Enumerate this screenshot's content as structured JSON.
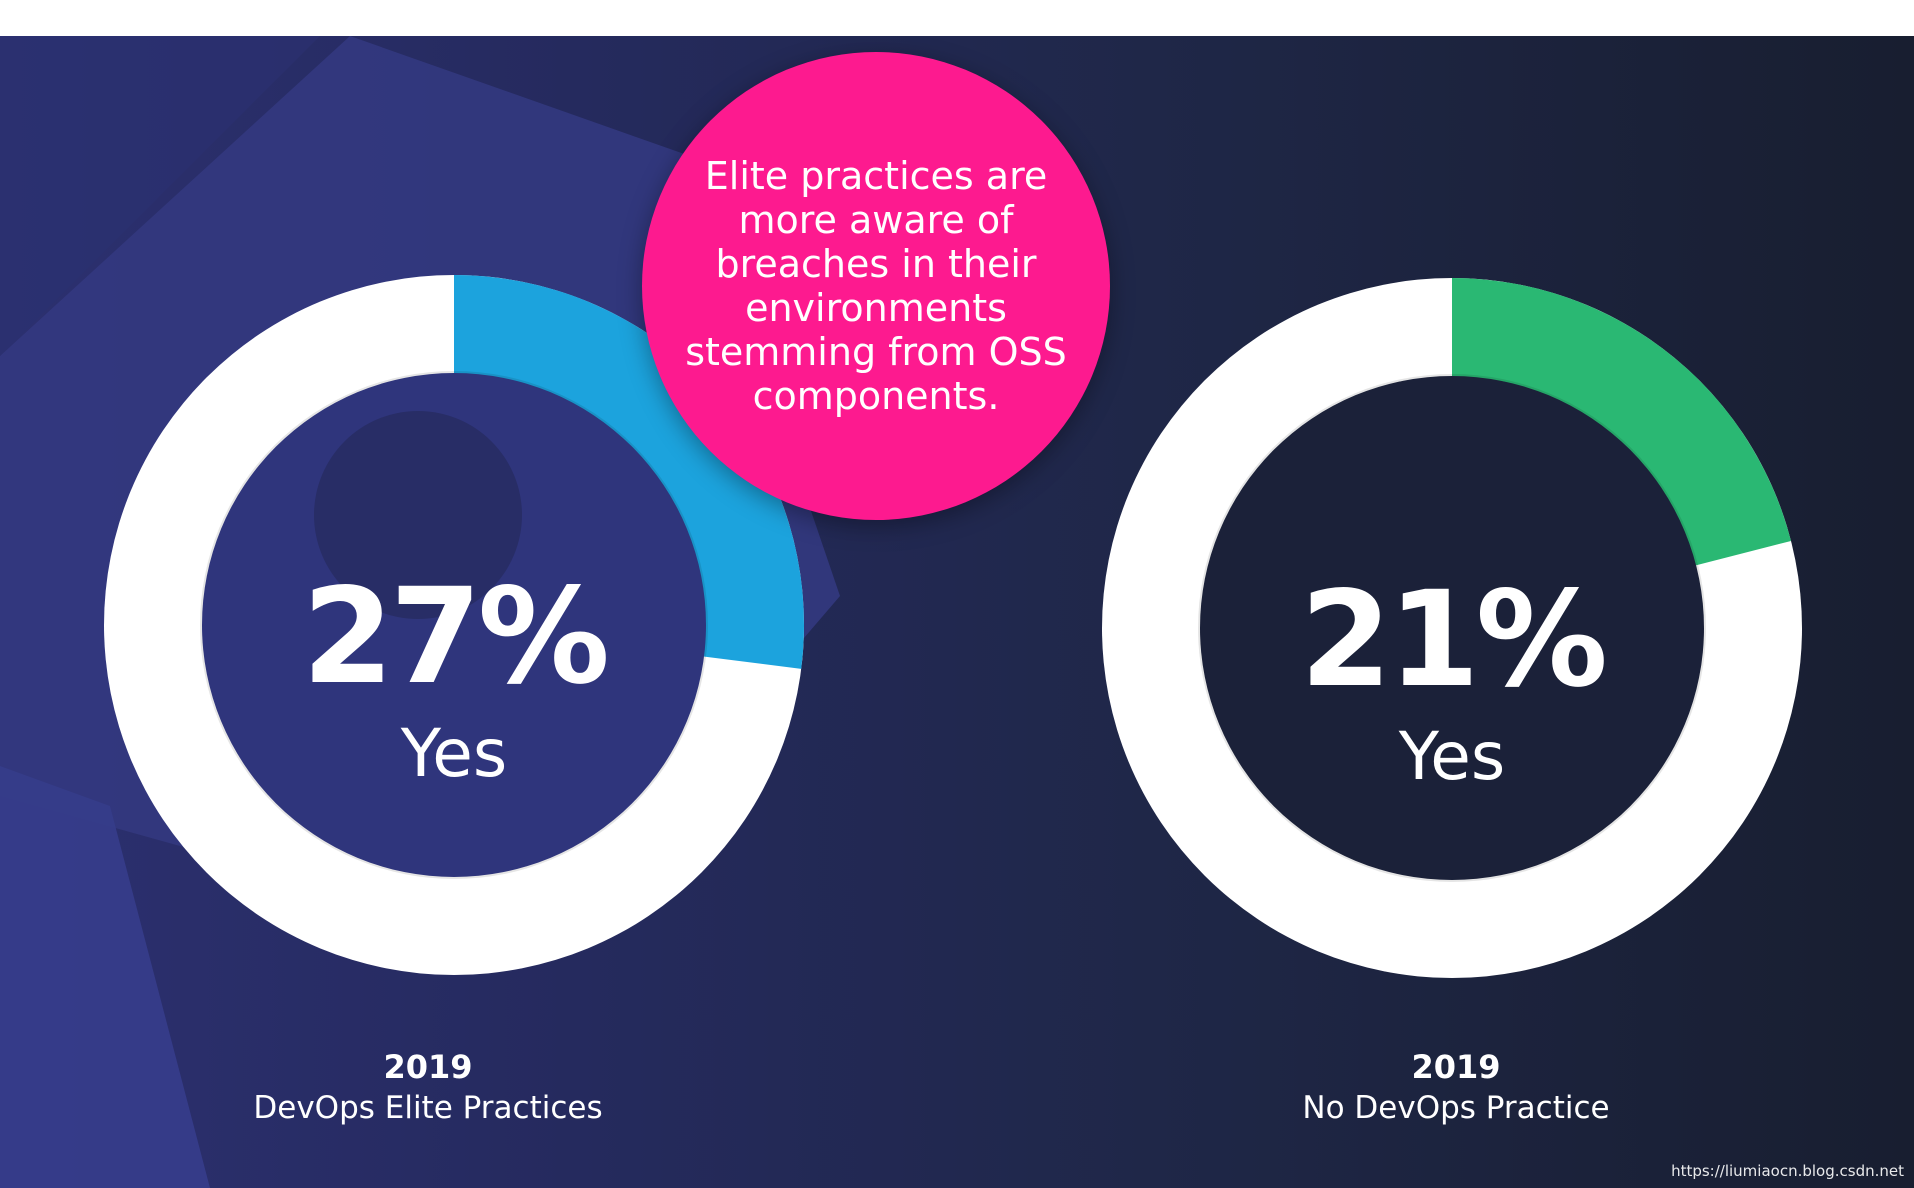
{
  "colors": {
    "accent_blue": "#1ca3dd",
    "accent_green": "#2ab873",
    "callout_pink": "#fd1a8f",
    "ring_white": "#ffffff",
    "center_left": "#2f357c",
    "center_right": "#1b2139"
  },
  "callout": {
    "text": "Elite practices are more aware of breaches in their environments stemming from OSS components."
  },
  "chart_data": [
    {
      "type": "pie",
      "categories": [
        "Yes"
      ],
      "values": [
        27
      ],
      "value_label": "27%",
      "center_label": "Yes",
      "year": "2019",
      "group": "DevOps Elite Practices"
    },
    {
      "type": "pie",
      "categories": [
        "Yes"
      ],
      "values": [
        21
      ],
      "value_label": "21%",
      "center_label": "Yes",
      "year": "2019",
      "group": "No DevOps Practice"
    }
  ],
  "watermark": "https://liumiaocn.blog.csdn.net"
}
